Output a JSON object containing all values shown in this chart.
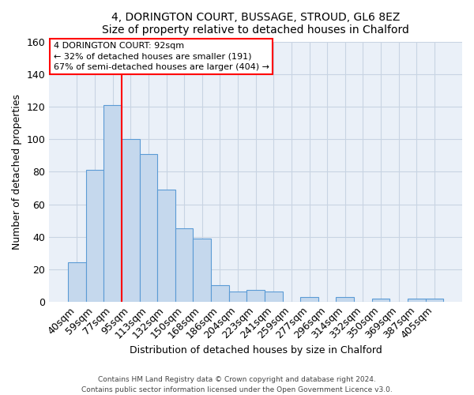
{
  "title": "4, DORINGTON COURT, BUSSAGE, STROUD, GL6 8EZ",
  "subtitle": "Size of property relative to detached houses in Chalford",
  "xlabel": "Distribution of detached houses by size in Chalford",
  "ylabel": "Number of detached properties",
  "bar_labels": [
    "40sqm",
    "59sqm",
    "77sqm",
    "95sqm",
    "113sqm",
    "132sqm",
    "150sqm",
    "168sqm",
    "186sqm",
    "204sqm",
    "223sqm",
    "241sqm",
    "259sqm",
    "277sqm",
    "296sqm",
    "314sqm",
    "332sqm",
    "350sqm",
    "369sqm",
    "387sqm",
    "405sqm"
  ],
  "bar_values": [
    24,
    81,
    121,
    100,
    91,
    69,
    45,
    39,
    10,
    6,
    7,
    6,
    0,
    3,
    0,
    3,
    0,
    2,
    0,
    2,
    2
  ],
  "bar_color": "#c5d8ed",
  "bar_edge_color": "#5b9bd5",
  "ylim": [
    0,
    160
  ],
  "yticks": [
    0,
    20,
    40,
    60,
    80,
    100,
    120,
    140,
    160
  ],
  "vline_x_index": 2.5,
  "annotation_title": "4 DORINGTON COURT: 92sqm",
  "annotation_line1": "← 32% of detached houses are smaller (191)",
  "annotation_line2": "67% of semi-detached houses are larger (404) →",
  "footer1": "Contains HM Land Registry data © Crown copyright and database right 2024.",
  "footer2": "Contains public sector information licensed under the Open Government Licence v3.0.",
  "background_color": "#ffffff",
  "grid_color": "#c8d4e3",
  "ax_bg_color": "#eaf0f8"
}
